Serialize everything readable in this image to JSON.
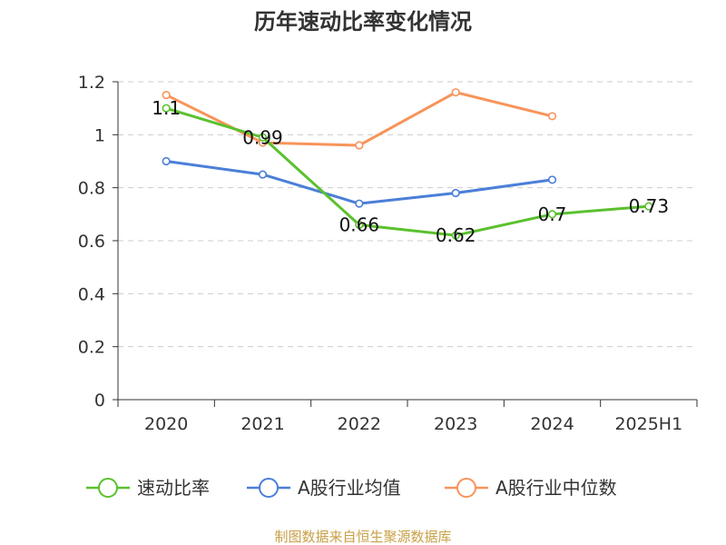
{
  "chart_data": {
    "type": "line",
    "title": "历年速动比率变化情况",
    "categories": [
      "2020",
      "2021",
      "2022",
      "2023",
      "2024",
      "2025H1"
    ],
    "ylim": [
      0,
      1.2
    ],
    "yticks": [
      "0",
      "0.2",
      "0.4",
      "0.6",
      "0.8",
      "1",
      "1.2"
    ],
    "grid": true,
    "legend_position": "bottom",
    "series": [
      {
        "name": "速动比率",
        "color": "#5ac12e",
        "values": [
          1.1,
          0.99,
          0.66,
          0.62,
          0.7,
          0.73
        ],
        "labels": [
          "1.1",
          "0.99",
          "0.66",
          "0.62",
          "0.7",
          "0.73"
        ]
      },
      {
        "name": "A股行业均值",
        "color": "#4a7fd8",
        "values": [
          0.9,
          0.85,
          0.74,
          0.78,
          0.83,
          null
        ]
      },
      {
        "name": "A股行业中位数",
        "color": "#f7945a",
        "values": [
          1.15,
          0.97,
          0.96,
          1.16,
          1.07,
          null
        ]
      }
    ],
    "source": "制图数据来自恒生聚源数据库"
  }
}
